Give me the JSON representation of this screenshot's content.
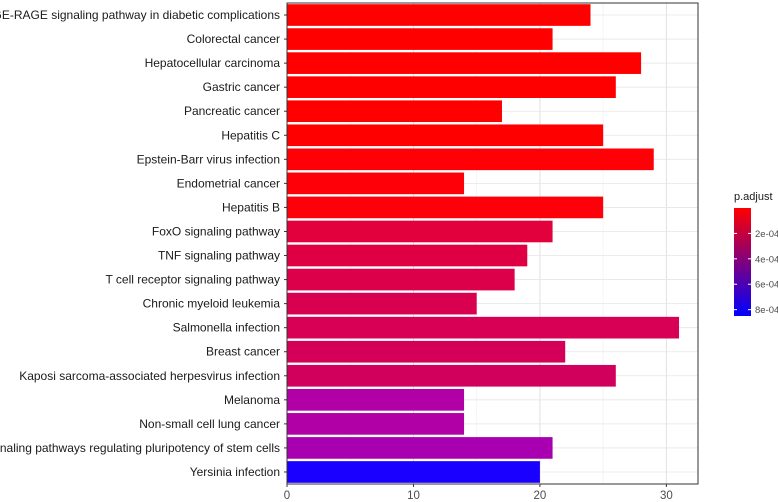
{
  "chart_data": {
    "type": "bar",
    "orientation": "horizontal",
    "title": "",
    "xlabel": "",
    "ylabel": "",
    "xlim": [
      0,
      32.5
    ],
    "xticks": [
      0,
      10,
      20,
      30
    ],
    "xtick_labels": [
      "0",
      "10",
      "20",
      "30"
    ],
    "grid": true,
    "categories": [
      "AGE-RAGE signaling pathway in diabetic complications",
      "Colorectal cancer",
      "Hepatocellular carcinoma",
      "Gastric cancer",
      "Pancreatic cancer",
      "Hepatitis C",
      "Epstein-Barr virus infection",
      "Endometrial cancer",
      "Hepatitis B",
      "FoxO signaling pathway",
      "TNF signaling pathway",
      "T cell receptor signaling pathway",
      "Chronic myeloid leukemia",
      "Salmonella infection",
      "Breast cancer",
      "Kaposi sarcoma-associated herpesvirus infection",
      "Melanoma",
      "Non-small cell lung cancer",
      "Signaling pathways regulating pluripotency of stem cells",
      "Yersinia infection"
    ],
    "values": [
      24,
      21,
      28,
      26,
      17,
      25,
      29,
      14,
      25,
      21,
      19,
      18,
      15,
      31,
      22,
      26,
      14,
      14,
      21,
      20
    ],
    "p_adjust": [
      5e-08,
      8e-08,
      1e-07,
      1e-07,
      2e-07,
      3e-07,
      5e-07,
      6e-07,
      8e-07,
      9e-05,
      0.0001,
      0.00011,
      0.00012,
      0.00013,
      0.00014,
      0.00015,
      0.00036,
      0.00036,
      0.0004,
      0.00082
    ],
    "colors": [
      "#ff0000",
      "#ff0000",
      "#ff0000",
      "#ff0000",
      "#ff0000",
      "#ff0000",
      "#fe0005",
      "#fe0008",
      "#fd000a",
      "#e2003d",
      "#df0044",
      "#dc004a",
      "#da0050",
      "#d70055",
      "#d40058",
      "#d1005c",
      "#b000a6",
      "#b000a6",
      "#a800b0",
      "#1a00fe"
    ],
    "legend": {
      "title": "p.adjust",
      "position": "right",
      "colormap": [
        "#ff0000",
        "#0000ff"
      ],
      "range": [
        0,
        0.00085
      ],
      "ticks": [
        0.0002,
        0.0004,
        0.0006,
        0.0008
      ],
      "tick_labels": [
        "2e-04",
        "4e-04",
        "6e-04",
        "8e-04"
      ]
    }
  }
}
